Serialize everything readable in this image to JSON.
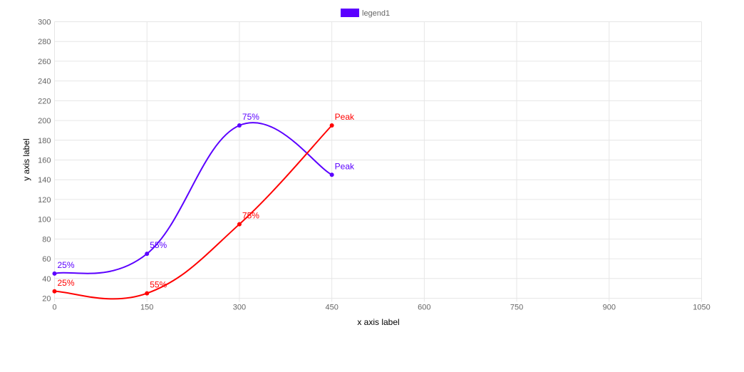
{
  "chart_data": {
    "type": "line",
    "xlabel": "x axis label",
    "ylabel": "y axis label",
    "xlim": [
      0,
      1050
    ],
    "ylim": [
      20,
      300
    ],
    "x_ticks": [
      "0",
      "150",
      "300",
      "450",
      "600",
      "750",
      "900",
      "1050"
    ],
    "y_ticks": [
      "20",
      "40",
      "60",
      "80",
      "100",
      "120",
      "140",
      "160",
      "180",
      "200",
      "220",
      "240",
      "260",
      "280",
      "300"
    ],
    "grid": true,
    "legend": {
      "position": "top-center",
      "entries": [
        "legend1"
      ]
    },
    "series": [
      {
        "name": "legend1",
        "color": "#5b00ff",
        "x": [
          0,
          150,
          300,
          450
        ],
        "y": [
          45,
          65,
          195,
          145
        ],
        "labels": [
          "25%",
          "55%",
          "75%",
          "Peak"
        ]
      },
      {
        "color": "#ff0000",
        "x": [
          0,
          150,
          300,
          450
        ],
        "y": [
          27,
          25,
          95,
          195
        ],
        "labels": [
          "25%",
          "55%",
          "75%",
          "Peak"
        ]
      }
    ]
  }
}
